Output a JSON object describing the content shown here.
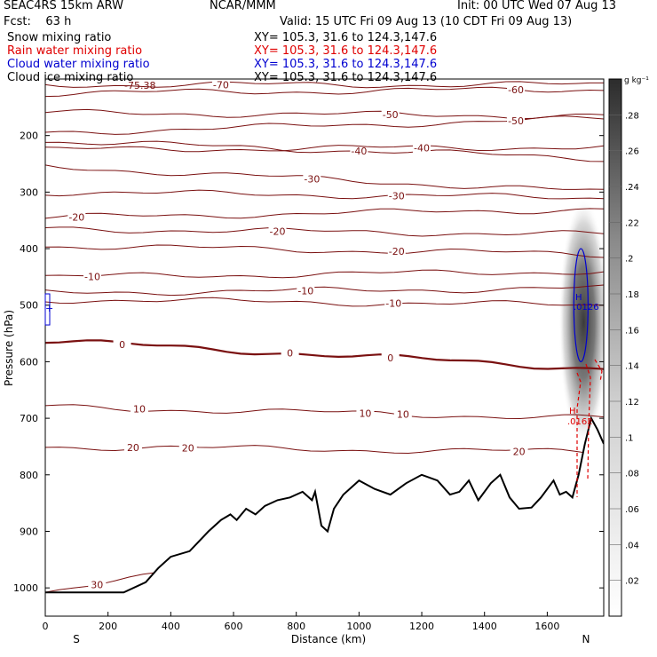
{
  "header": {
    "model": "SEAC4RS 15km ARW",
    "org": "NCAR/MMM",
    "init": "Init: 00 UTC Wed 07 Aug 13",
    "fcst": "Fcst:    63 h",
    "valid": "Valid: 15 UTC Fri 09 Aug 13 (10 CDT Fri 09 Aug 13)"
  },
  "fields": [
    {
      "name": "Snow mixing ratio",
      "xy": "XY= 105.3, 31.6 to 124.3,147.6",
      "color": "#000000"
    },
    {
      "name": "Rain water mixing ratio",
      "xy": "XY= 105.3, 31.6 to 124.3,147.6",
      "color": "#e00000"
    },
    {
      "name": "Cloud water mixing ratio",
      "xy": "XY= 105.3, 31.6 to 124.3,147.6",
      "color": "#0000d0"
    },
    {
      "name": "Cloud ice mixing ratio",
      "xy": "XY= 105.3, 31.6 to 124.3,147.6",
      "color": "#000000"
    }
  ],
  "chart_data": {
    "type": "cross-section",
    "xlabel": "Distance (km)",
    "ylabel": "Pressure (hPa)",
    "xlim": [
      0,
      1780
    ],
    "ylim": [
      1050,
      100
    ],
    "xticks": [
      0,
      200,
      400,
      600,
      800,
      1000,
      1200,
      1400,
      1600
    ],
    "yticks": [
      200,
      300,
      400,
      500,
      600,
      700,
      800,
      900,
      1000
    ],
    "end_labels": {
      "left": "S",
      "right": "N"
    },
    "colorbar": {
      "unit": "g kg⁻¹",
      "ticks": [
        ".02",
        ".04",
        ".06",
        ".08",
        ".1",
        ".12",
        ".14",
        ".16",
        ".18",
        ".2",
        ".22",
        ".24",
        ".26",
        ".28"
      ],
      "max": 0.3
    },
    "terrain": {
      "x": [
        0,
        250,
        320,
        360,
        400,
        460,
        520,
        560,
        590,
        610,
        640,
        670,
        700,
        740,
        780,
        820,
        850,
        860,
        880,
        900,
        920,
        950,
        1000,
        1050,
        1100,
        1150,
        1200,
        1250,
        1290,
        1320,
        1350,
        1380,
        1420,
        1450,
        1480,
        1510,
        1550,
        1580,
        1620,
        1640,
        1660,
        1680,
        1700,
        1720,
        1740,
        1760,
        1780
      ],
      "p": [
        1008,
        1008,
        990,
        965,
        945,
        935,
        900,
        880,
        870,
        880,
        860,
        870,
        855,
        845,
        840,
        830,
        845,
        830,
        890,
        900,
        860,
        835,
        810,
        825,
        835,
        815,
        800,
        810,
        835,
        830,
        810,
        845,
        815,
        800,
        840,
        860,
        858,
        840,
        810,
        835,
        830,
        840,
        800,
        745,
        700,
        720,
        745
      ]
    },
    "temperature_isotherms": [
      {
        "label": "-70",
        "p_left": 110,
        "p_right": 110,
        "label_x": 560,
        "extra_label": "-75.38",
        "extra_label_x": 300
      },
      {
        "label": "-60",
        "p_left": 125,
        "p_right": 118,
        "label_x": 1500
      },
      {
        "label": "-50",
        "p_left": 160,
        "p_right": 165,
        "label_x": 1100
      },
      {
        "label": "-50",
        "p_left": 195,
        "p_right": 170,
        "label_x": 1500
      },
      {
        "label": "-40",
        "p_left": 210,
        "p_right": 240,
        "label_x": 1000
      },
      {
        "label": "-40",
        "p_left": 225,
        "p_right": 220,
        "label_x": 1200
      },
      {
        "label": "-30",
        "p_left": 255,
        "p_right": 300,
        "label_x": 850
      },
      {
        "label": "-30",
        "p_left": 300,
        "p_right": 310,
        "label_x": 1120
      },
      {
        "label": "-20",
        "p_left": 345,
        "p_right": 330,
        "label_x": 100
      },
      {
        "label": "-20",
        "p_left": 365,
        "p_right": 375,
        "label_x": 740
      },
      {
        "label": "-20",
        "p_left": 395,
        "p_right": 410,
        "label_x": 1120
      },
      {
        "label": "-10",
        "p_left": 450,
        "p_right": 440,
        "label_x": 150
      },
      {
        "label": "-10",
        "p_left": 478,
        "p_right": 470,
        "label_x": 830
      },
      {
        "label": "-10",
        "p_left": 490,
        "p_right": 500,
        "label_x": 1110
      },
      {
        "label": "0",
        "p_left": 563,
        "p_right": 612,
        "label_x": 245,
        "label_x2": 780,
        "label_x3": 1100,
        "bold": true
      },
      {
        "label": "10",
        "p_left": 680,
        "p_right": 700,
        "label_x": 300,
        "label_x2": 1020,
        "label_x3": 1140
      },
      {
        "label": "20",
        "p_left": 750,
        "p_right": 760,
        "label_x": 280,
        "label_x2": 455,
        "label_x3": 1510
      },
      {
        "label": "30",
        "p_left": 1008,
        "p_right": 860,
        "label_x": 165,
        "label_x2": 1100
      }
    ],
    "cloud_ice_shading": {
      "x_center": 1730,
      "p_center": 530,
      "max_value": 0.22
    },
    "cloud_water": {
      "contour_x": 1730,
      "p_top": 400,
      "p_bottom": 600,
      "max_label": "H",
      "value": ".0126"
    },
    "rain_water": {
      "max_label": "H",
      "value": ".0162"
    },
    "left_box_label": "+"
  }
}
